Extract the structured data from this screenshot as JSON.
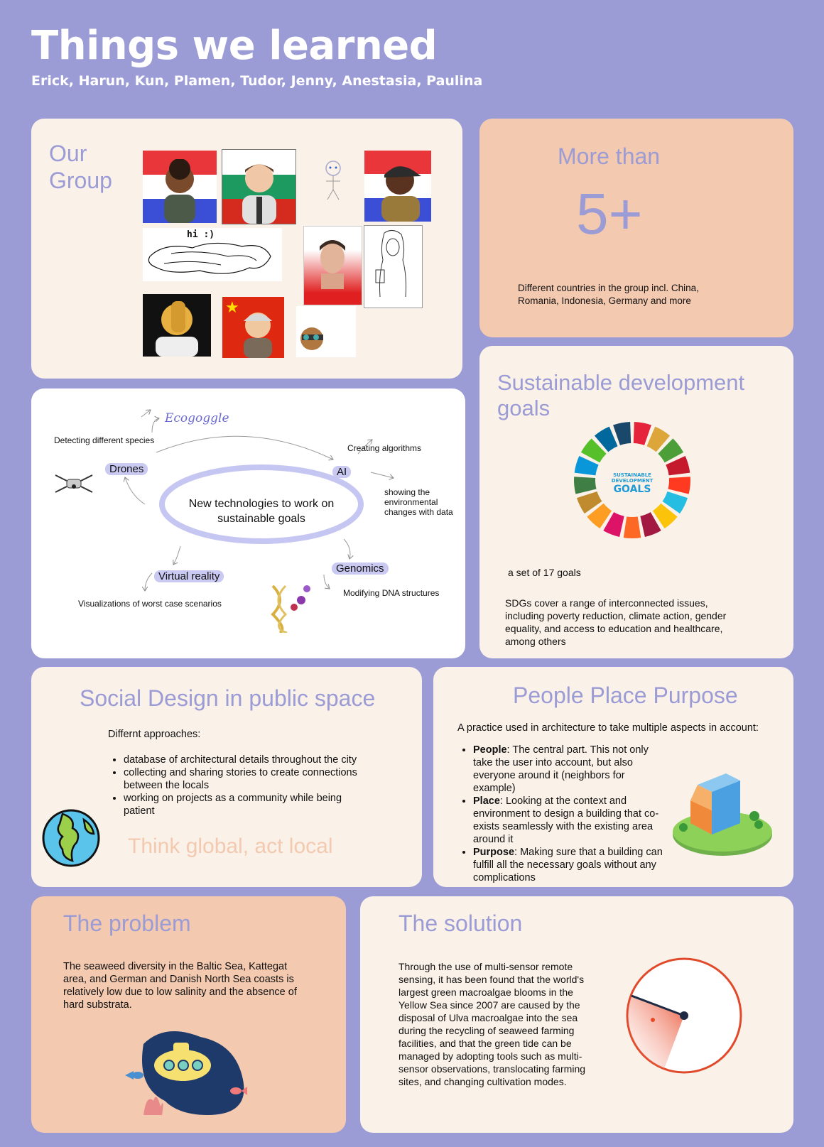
{
  "header": {
    "title": "Things we learned",
    "subtitle": "Erick, Harun, Kun, Plamen, Tudor, Jenny, Anestasia, Paulina"
  },
  "group": {
    "title_line1": "Our",
    "title_line2": "Group",
    "hi_text": "hi :)"
  },
  "countries": {
    "label": "More than",
    "number": "5+",
    "description": "Different countries in the group incl. China, Romania, Indonesia, Germany and more"
  },
  "mindmap": {
    "center": "New technologies to work on sustainable goals",
    "ecogoggle": "Ecogoggle",
    "detecting": "Detecting different species",
    "drones": "Drones",
    "ai": "AI",
    "creating": "Creating algorithms",
    "showing": "showing the environmental changes with data",
    "vr": "Virtual reality",
    "visualizations": "Visualizations of worst case scenarios",
    "genomics": "Genomics",
    "modifying": "Modifying DNA structures"
  },
  "sdg": {
    "title": "Sustainable development goals",
    "wheel_line1": "SUSTAINABLE",
    "wheel_line2": "DEVELOPMENT",
    "wheel_line3": "GOALS",
    "set": "a set of 17 goals",
    "description": "SDGs cover a range of interconnected issues, including poverty reduction, climate action, gender equality, and access to education and healthcare, among others",
    "colors": [
      "#e5243b",
      "#dda63a",
      "#4c9f38",
      "#c5192d",
      "#ff3a21",
      "#26bde2",
      "#fcc30b",
      "#a21942",
      "#fd6925",
      "#dd1367",
      "#fd9d24",
      "#bf8b2e",
      "#3f7e44",
      "#0a97d9",
      "#56c02b",
      "#00689d",
      "#19486a"
    ]
  },
  "social": {
    "title": "Social Design in public space",
    "intro": "Differnt approaches:",
    "items": [
      "database of architectural details throughout the city",
      "collecting and sharing stories to create connections between the locals",
      "working on projects as a community while being patient"
    ],
    "motto": "Think global, act local"
  },
  "ppp": {
    "title": "People Place Purpose",
    "intro": "A practice used in architecture to take multiple aspects in account:",
    "items": [
      {
        "term": "People",
        "text": ": The central part. This not only take the user into account, but also everyone around it (neighbors for example)"
      },
      {
        "term": "Place",
        "text": ": Looking at the context and environment to design a building that co-exists seamlessly with the existing area around it"
      },
      {
        "term": "Purpose",
        "text": ": Making sure that a building can fulfill all the necessary goals without any complications"
      }
    ]
  },
  "problem": {
    "title": "The problem",
    "text": "The seaweed diversity in the Baltic Sea, Kattegat area, and German and Danish North Sea coasts is relatively low due to low salinity and the absence of hard substrata."
  },
  "solution": {
    "title": "The solution",
    "text": "Through the use of multi-sensor remote sensing, it has been found that the world's largest green macroalgae blooms in the Yellow Sea since 2007 are caused by the disposal of Ulva macroalgae into the sea during the recycling of seaweed farming facilities, and that the green tide can be managed by adopting tools such as multi-sensor observations, translocating farming sites, and changing cultivation modes."
  }
}
